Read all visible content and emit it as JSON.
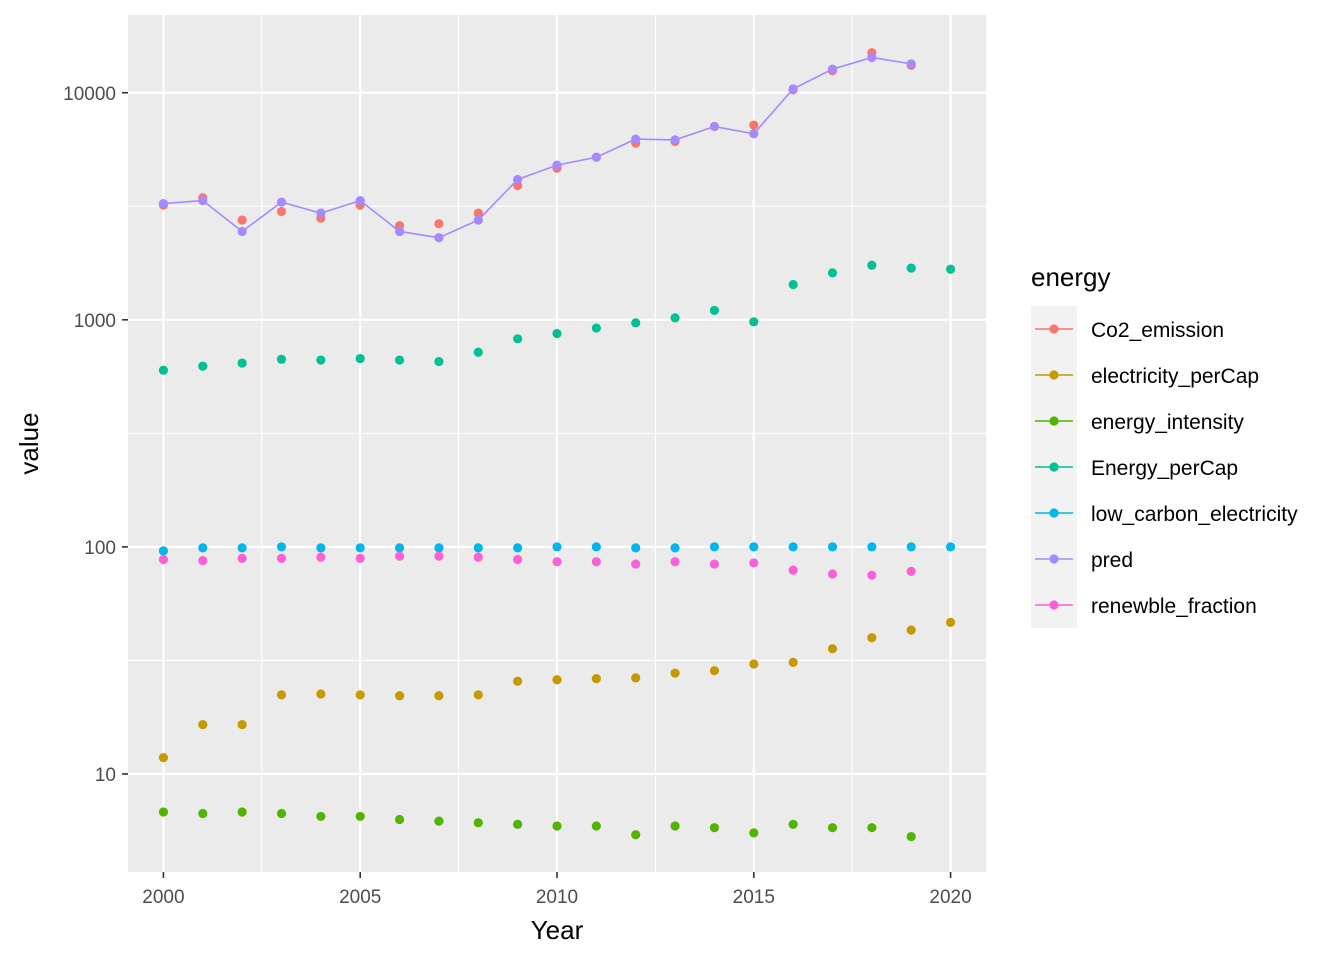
{
  "chart_data": {
    "type": "scatter",
    "xlabel": "Year",
    "ylabel": "value",
    "y_scale": "log10",
    "xlim": [
      1999.1,
      2020.9
    ],
    "ylim": [
      3.7,
      22000
    ],
    "x_ticks": [
      2000,
      2005,
      2010,
      2015,
      2020
    ],
    "x_tick_labels": [
      "2000",
      "2005",
      "2010",
      "2015",
      "2020"
    ],
    "y_ticks": [
      10,
      100,
      1000,
      10000
    ],
    "y_tick_labels": [
      "10",
      "100",
      "1000",
      "10000"
    ],
    "grid": true,
    "legend": {
      "title": "energy",
      "position": "right"
    },
    "series": [
      {
        "name": "Co2_emission",
        "color": "#F8766D",
        "line": false,
        "x": [
          2000,
          2001,
          2002,
          2003,
          2004,
          2005,
          2006,
          2007,
          2008,
          2009,
          2010,
          2011,
          2012,
          2013,
          2014,
          2015,
          2016,
          2017,
          2018,
          2019
        ],
        "values": [
          3200,
          3450,
          2750,
          3000,
          2800,
          3200,
          2600,
          2650,
          2950,
          3900,
          4650,
          5200,
          6000,
          6100,
          7100,
          7200,
          10300,
          12500,
          15000,
          13200
        ]
      },
      {
        "name": "electricity_perCap",
        "color": "#C49A00",
        "line": false,
        "x": [
          2000,
          2001,
          2002,
          2003,
          2004,
          2005,
          2006,
          2007,
          2008,
          2009,
          2010,
          2011,
          2012,
          2013,
          2014,
          2015,
          2016,
          2017,
          2018,
          2019,
          2020
        ],
        "values": [
          11.8,
          16.5,
          16.5,
          22.3,
          22.5,
          22.3,
          22.1,
          22.1,
          22.3,
          25.6,
          26,
          26.3,
          26.5,
          27.8,
          28.5,
          30.5,
          31,
          35.6,
          39.8,
          43,
          46.5
        ]
      },
      {
        "name": "energy_intensity",
        "color": "#53B400",
        "line": false,
        "x": [
          2000,
          2001,
          2002,
          2003,
          2004,
          2005,
          2006,
          2007,
          2008,
          2009,
          2010,
          2011,
          2012,
          2013,
          2014,
          2015,
          2016,
          2017,
          2018,
          2019
        ],
        "values": [
          6.8,
          6.7,
          6.8,
          6.7,
          6.5,
          6.5,
          6.3,
          6.2,
          6.1,
          6.0,
          5.9,
          5.9,
          5.4,
          5.9,
          5.8,
          5.5,
          6.0,
          5.8,
          5.8,
          5.3
        ]
      },
      {
        "name": "Energy_perCap",
        "color": "#00C094",
        "line": false,
        "x": [
          2000,
          2001,
          2002,
          2003,
          2004,
          2005,
          2006,
          2007,
          2008,
          2009,
          2010,
          2011,
          2012,
          2013,
          2014,
          2015,
          2016,
          2017,
          2018,
          2019,
          2020
        ],
        "values": [
          600,
          625,
          645,
          670,
          665,
          675,
          665,
          655,
          720,
          825,
          870,
          920,
          970,
          1020,
          1100,
          980,
          1430,
          1610,
          1740,
          1690,
          1670
        ]
      },
      {
        "name": "low_carbon_electricity",
        "color": "#00B6EB",
        "line": false,
        "x": [
          2000,
          2001,
          2002,
          2003,
          2004,
          2005,
          2006,
          2007,
          2008,
          2009,
          2010,
          2011,
          2012,
          2013,
          2014,
          2015,
          2016,
          2017,
          2018,
          2019,
          2020
        ],
        "values": [
          96,
          99,
          99,
          100,
          99,
          99,
          99,
          99,
          99,
          99,
          100,
          100,
          99,
          99,
          100,
          100,
          100,
          100,
          100,
          100,
          100
        ]
      },
      {
        "name": "pred",
        "color": "#A58AFF",
        "line": true,
        "x": [
          2000,
          2001,
          2002,
          2003,
          2004,
          2005,
          2006,
          2007,
          2008,
          2009,
          2010,
          2011,
          2012,
          2013,
          2014,
          2015,
          2016,
          2017,
          2018,
          2019
        ],
        "values": [
          3250,
          3350,
          2450,
          3300,
          2950,
          3350,
          2450,
          2300,
          2750,
          4150,
          4800,
          5200,
          6250,
          6200,
          7100,
          6600,
          10400,
          12700,
          14300,
          13400
        ]
      },
      {
        "name": "renewble_fraction",
        "color": "#FB61D7",
        "line": false,
        "x": [
          2000,
          2001,
          2002,
          2003,
          2004,
          2005,
          2006,
          2007,
          2008,
          2009,
          2010,
          2011,
          2012,
          2013,
          2014,
          2015,
          2016,
          2017,
          2018,
          2019
        ],
        "values": [
          88,
          87,
          89,
          89,
          90,
          89,
          91,
          91,
          90,
          88,
          86,
          86,
          84,
          86,
          84,
          85,
          79,
          76,
          75,
          78
        ]
      }
    ]
  }
}
